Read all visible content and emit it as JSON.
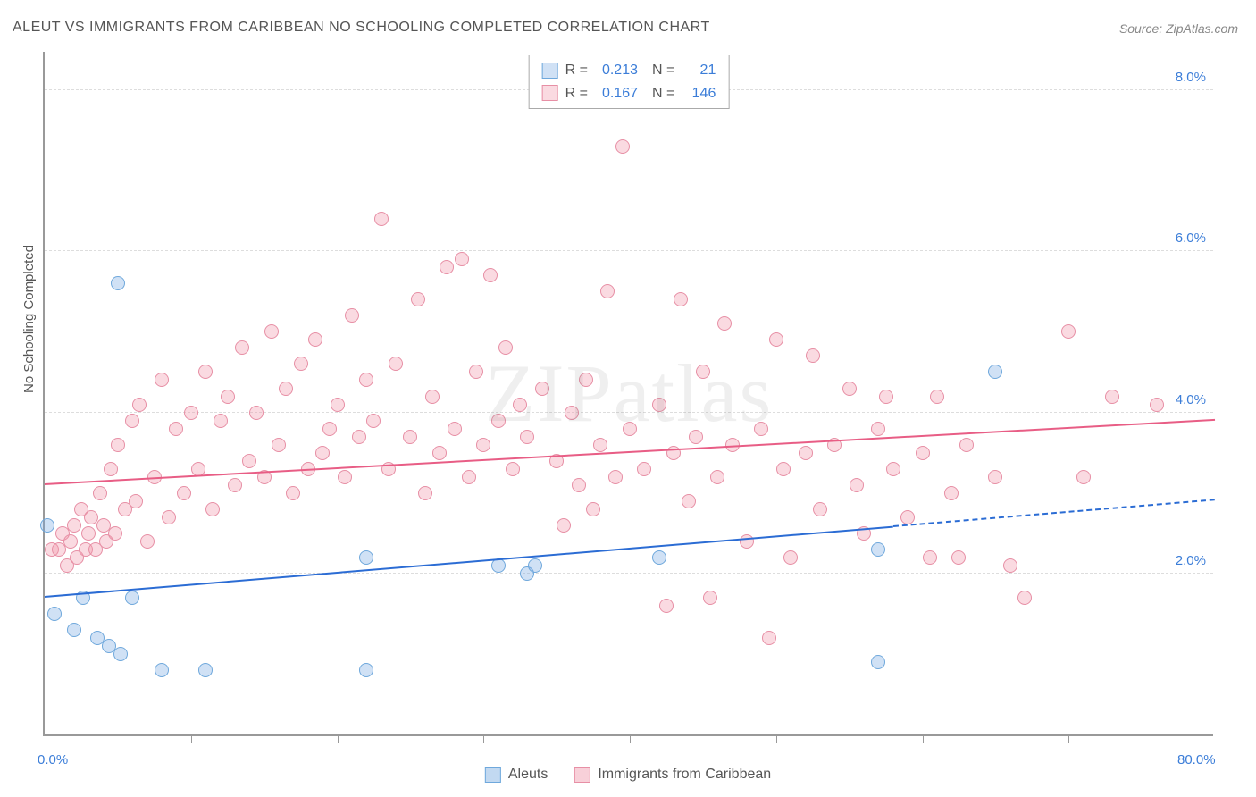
{
  "title": "ALEUT VS IMMIGRANTS FROM CARIBBEAN NO SCHOOLING COMPLETED CORRELATION CHART",
  "source": "Source: ZipAtlas.com",
  "watermark": "ZIPatlas",
  "ylabel": "No Schooling Completed",
  "chart": {
    "type": "scatter",
    "xlim": [
      0,
      80
    ],
    "ylim": [
      0,
      8.5
    ],
    "x_ticks_major": [
      0,
      80
    ],
    "x_tick_labels": [
      "0.0%",
      "80.0%"
    ],
    "x_ticks_minor": [
      10,
      20,
      30,
      40,
      50,
      60,
      70
    ],
    "y_gridlines": [
      2,
      4,
      6,
      8
    ],
    "y_tick_labels": [
      "2.0%",
      "4.0%",
      "6.0%",
      "8.0%"
    ],
    "grid_color": "#dddddd",
    "axis_color": "#999999",
    "label_color": "#3b7dd8",
    "background_color": "#ffffff",
    "marker_size": 16,
    "series": [
      {
        "name": "Aleuts",
        "fill": "rgba(120,170,225,0.35)",
        "stroke": "#6fa8dc",
        "r": "0.213",
        "n": "21",
        "trend": {
          "x1": 0,
          "y1": 1.7,
          "x2": 80,
          "y2": 2.9,
          "solid_until_x": 58,
          "color": "#2b6cd4",
          "width": 2
        },
        "points": [
          [
            0.2,
            2.6
          ],
          [
            0.7,
            1.5
          ],
          [
            2.0,
            1.3
          ],
          [
            3.6,
            1.2
          ],
          [
            2.6,
            1.7
          ],
          [
            4.4,
            1.1
          ],
          [
            5.2,
            1.0
          ],
          [
            8.0,
            0.8
          ],
          [
            11.0,
            0.8
          ],
          [
            5.0,
            5.6
          ],
          [
            6.0,
            1.7
          ],
          [
            22.0,
            2.2
          ],
          [
            22.0,
            0.8
          ],
          [
            31.0,
            2.1
          ],
          [
            33.0,
            2.0
          ],
          [
            33.5,
            2.1
          ],
          [
            42.0,
            2.2
          ],
          [
            57.0,
            0.9
          ],
          [
            65.0,
            4.5
          ],
          [
            57.0,
            2.3
          ]
        ]
      },
      {
        "name": "Immigrants from Caribbean",
        "fill": "rgba(240,150,170,0.35)",
        "stroke": "#e78fa5",
        "r": "0.167",
        "n": "146",
        "trend": {
          "x1": 0,
          "y1": 3.1,
          "x2": 80,
          "y2": 3.9,
          "solid_until_x": 80,
          "color": "#e85d85",
          "width": 2
        },
        "points": [
          [
            0.5,
            2.3
          ],
          [
            1.0,
            2.3
          ],
          [
            1.2,
            2.5
          ],
          [
            1.5,
            2.1
          ],
          [
            1.8,
            2.4
          ],
          [
            2.0,
            2.6
          ],
          [
            2.2,
            2.2
          ],
          [
            2.5,
            2.8
          ],
          [
            2.8,
            2.3
          ],
          [
            3.0,
            2.5
          ],
          [
            3.2,
            2.7
          ],
          [
            3.5,
            2.3
          ],
          [
            3.8,
            3.0
          ],
          [
            4.0,
            2.6
          ],
          [
            4.2,
            2.4
          ],
          [
            4.5,
            3.3
          ],
          [
            4.8,
            2.5
          ],
          [
            5.0,
            3.6
          ],
          [
            5.5,
            2.8
          ],
          [
            6.0,
            3.9
          ],
          [
            6.2,
            2.9
          ],
          [
            6.5,
            4.1
          ],
          [
            7.0,
            2.4
          ],
          [
            7.5,
            3.2
          ],
          [
            8.0,
            4.4
          ],
          [
            8.5,
            2.7
          ],
          [
            9.0,
            3.8
          ],
          [
            9.5,
            3.0
          ],
          [
            10.0,
            4.0
          ],
          [
            10.5,
            3.3
          ],
          [
            11.0,
            4.5
          ],
          [
            11.5,
            2.8
          ],
          [
            12.0,
            3.9
          ],
          [
            12.5,
            4.2
          ],
          [
            13.0,
            3.1
          ],
          [
            13.5,
            4.8
          ],
          [
            14.0,
            3.4
          ],
          [
            14.5,
            4.0
          ],
          [
            15.0,
            3.2
          ],
          [
            15.5,
            5.0
          ],
          [
            16.0,
            3.6
          ],
          [
            16.5,
            4.3
          ],
          [
            17.0,
            3.0
          ],
          [
            17.5,
            4.6
          ],
          [
            18.0,
            3.3
          ],
          [
            18.5,
            4.9
          ],
          [
            19.0,
            3.5
          ],
          [
            19.5,
            3.8
          ],
          [
            20.0,
            4.1
          ],
          [
            20.5,
            3.2
          ],
          [
            21.0,
            5.2
          ],
          [
            21.5,
            3.7
          ],
          [
            22.0,
            4.4
          ],
          [
            22.5,
            3.9
          ],
          [
            23.0,
            6.4
          ],
          [
            23.5,
            3.3
          ],
          [
            24.0,
            4.6
          ],
          [
            25.0,
            3.7
          ],
          [
            25.5,
            5.4
          ],
          [
            26.0,
            3.0
          ],
          [
            26.5,
            4.2
          ],
          [
            27.0,
            3.5
          ],
          [
            27.5,
            5.8
          ],
          [
            28.0,
            3.8
          ],
          [
            28.5,
            5.9
          ],
          [
            29.0,
            3.2
          ],
          [
            29.5,
            4.5
          ],
          [
            30.0,
            3.6
          ],
          [
            30.5,
            5.7
          ],
          [
            31.0,
            3.9
          ],
          [
            31.5,
            4.8
          ],
          [
            32.0,
            3.3
          ],
          [
            32.5,
            4.1
          ],
          [
            33.0,
            3.7
          ],
          [
            34.0,
            4.3
          ],
          [
            35.0,
            3.4
          ],
          [
            35.5,
            2.6
          ],
          [
            36.0,
            4.0
          ],
          [
            36.5,
            3.1
          ],
          [
            37.0,
            4.4
          ],
          [
            37.5,
            2.8
          ],
          [
            38.0,
            3.6
          ],
          [
            38.5,
            5.5
          ],
          [
            39.0,
            3.2
          ],
          [
            39.5,
            7.3
          ],
          [
            40.0,
            3.8
          ],
          [
            41.0,
            3.3
          ],
          [
            42.0,
            4.1
          ],
          [
            42.5,
            1.6
          ],
          [
            43.0,
            3.5
          ],
          [
            43.5,
            5.4
          ],
          [
            44.0,
            2.9
          ],
          [
            44.5,
            3.7
          ],
          [
            45.0,
            4.5
          ],
          [
            45.5,
            1.7
          ],
          [
            46.0,
            3.2
          ],
          [
            46.5,
            5.1
          ],
          [
            47.0,
            3.6
          ],
          [
            48.0,
            2.4
          ],
          [
            49.0,
            3.8
          ],
          [
            49.5,
            1.2
          ],
          [
            50.0,
            4.9
          ],
          [
            50.5,
            3.3
          ],
          [
            51.0,
            2.2
          ],
          [
            52.0,
            3.5
          ],
          [
            52.5,
            4.7
          ],
          [
            53.0,
            2.8
          ],
          [
            54.0,
            3.6
          ],
          [
            55.0,
            4.3
          ],
          [
            55.5,
            3.1
          ],
          [
            56.0,
            2.5
          ],
          [
            57.0,
            3.8
          ],
          [
            57.5,
            4.2
          ],
          [
            58.0,
            3.3
          ],
          [
            59.0,
            2.7
          ],
          [
            60.0,
            3.5
          ],
          [
            60.5,
            2.2
          ],
          [
            61.0,
            4.2
          ],
          [
            62.0,
            3.0
          ],
          [
            62.5,
            2.2
          ],
          [
            63.0,
            3.6
          ],
          [
            65.0,
            3.2
          ],
          [
            66.0,
            2.1
          ],
          [
            67.0,
            1.7
          ],
          [
            70.0,
            5.0
          ],
          [
            71.0,
            3.2
          ],
          [
            73.0,
            4.2
          ],
          [
            76.0,
            4.1
          ]
        ]
      }
    ]
  },
  "legend_top_labels": {
    "R": "R =",
    "N": "N ="
  },
  "legend_bottom": [
    {
      "label": "Aleuts",
      "fill": "rgba(120,170,225,0.45)",
      "stroke": "#6fa8dc"
    },
    {
      "label": "Immigrants from Caribbean",
      "fill": "rgba(240,150,170,0.45)",
      "stroke": "#e78fa5"
    }
  ]
}
